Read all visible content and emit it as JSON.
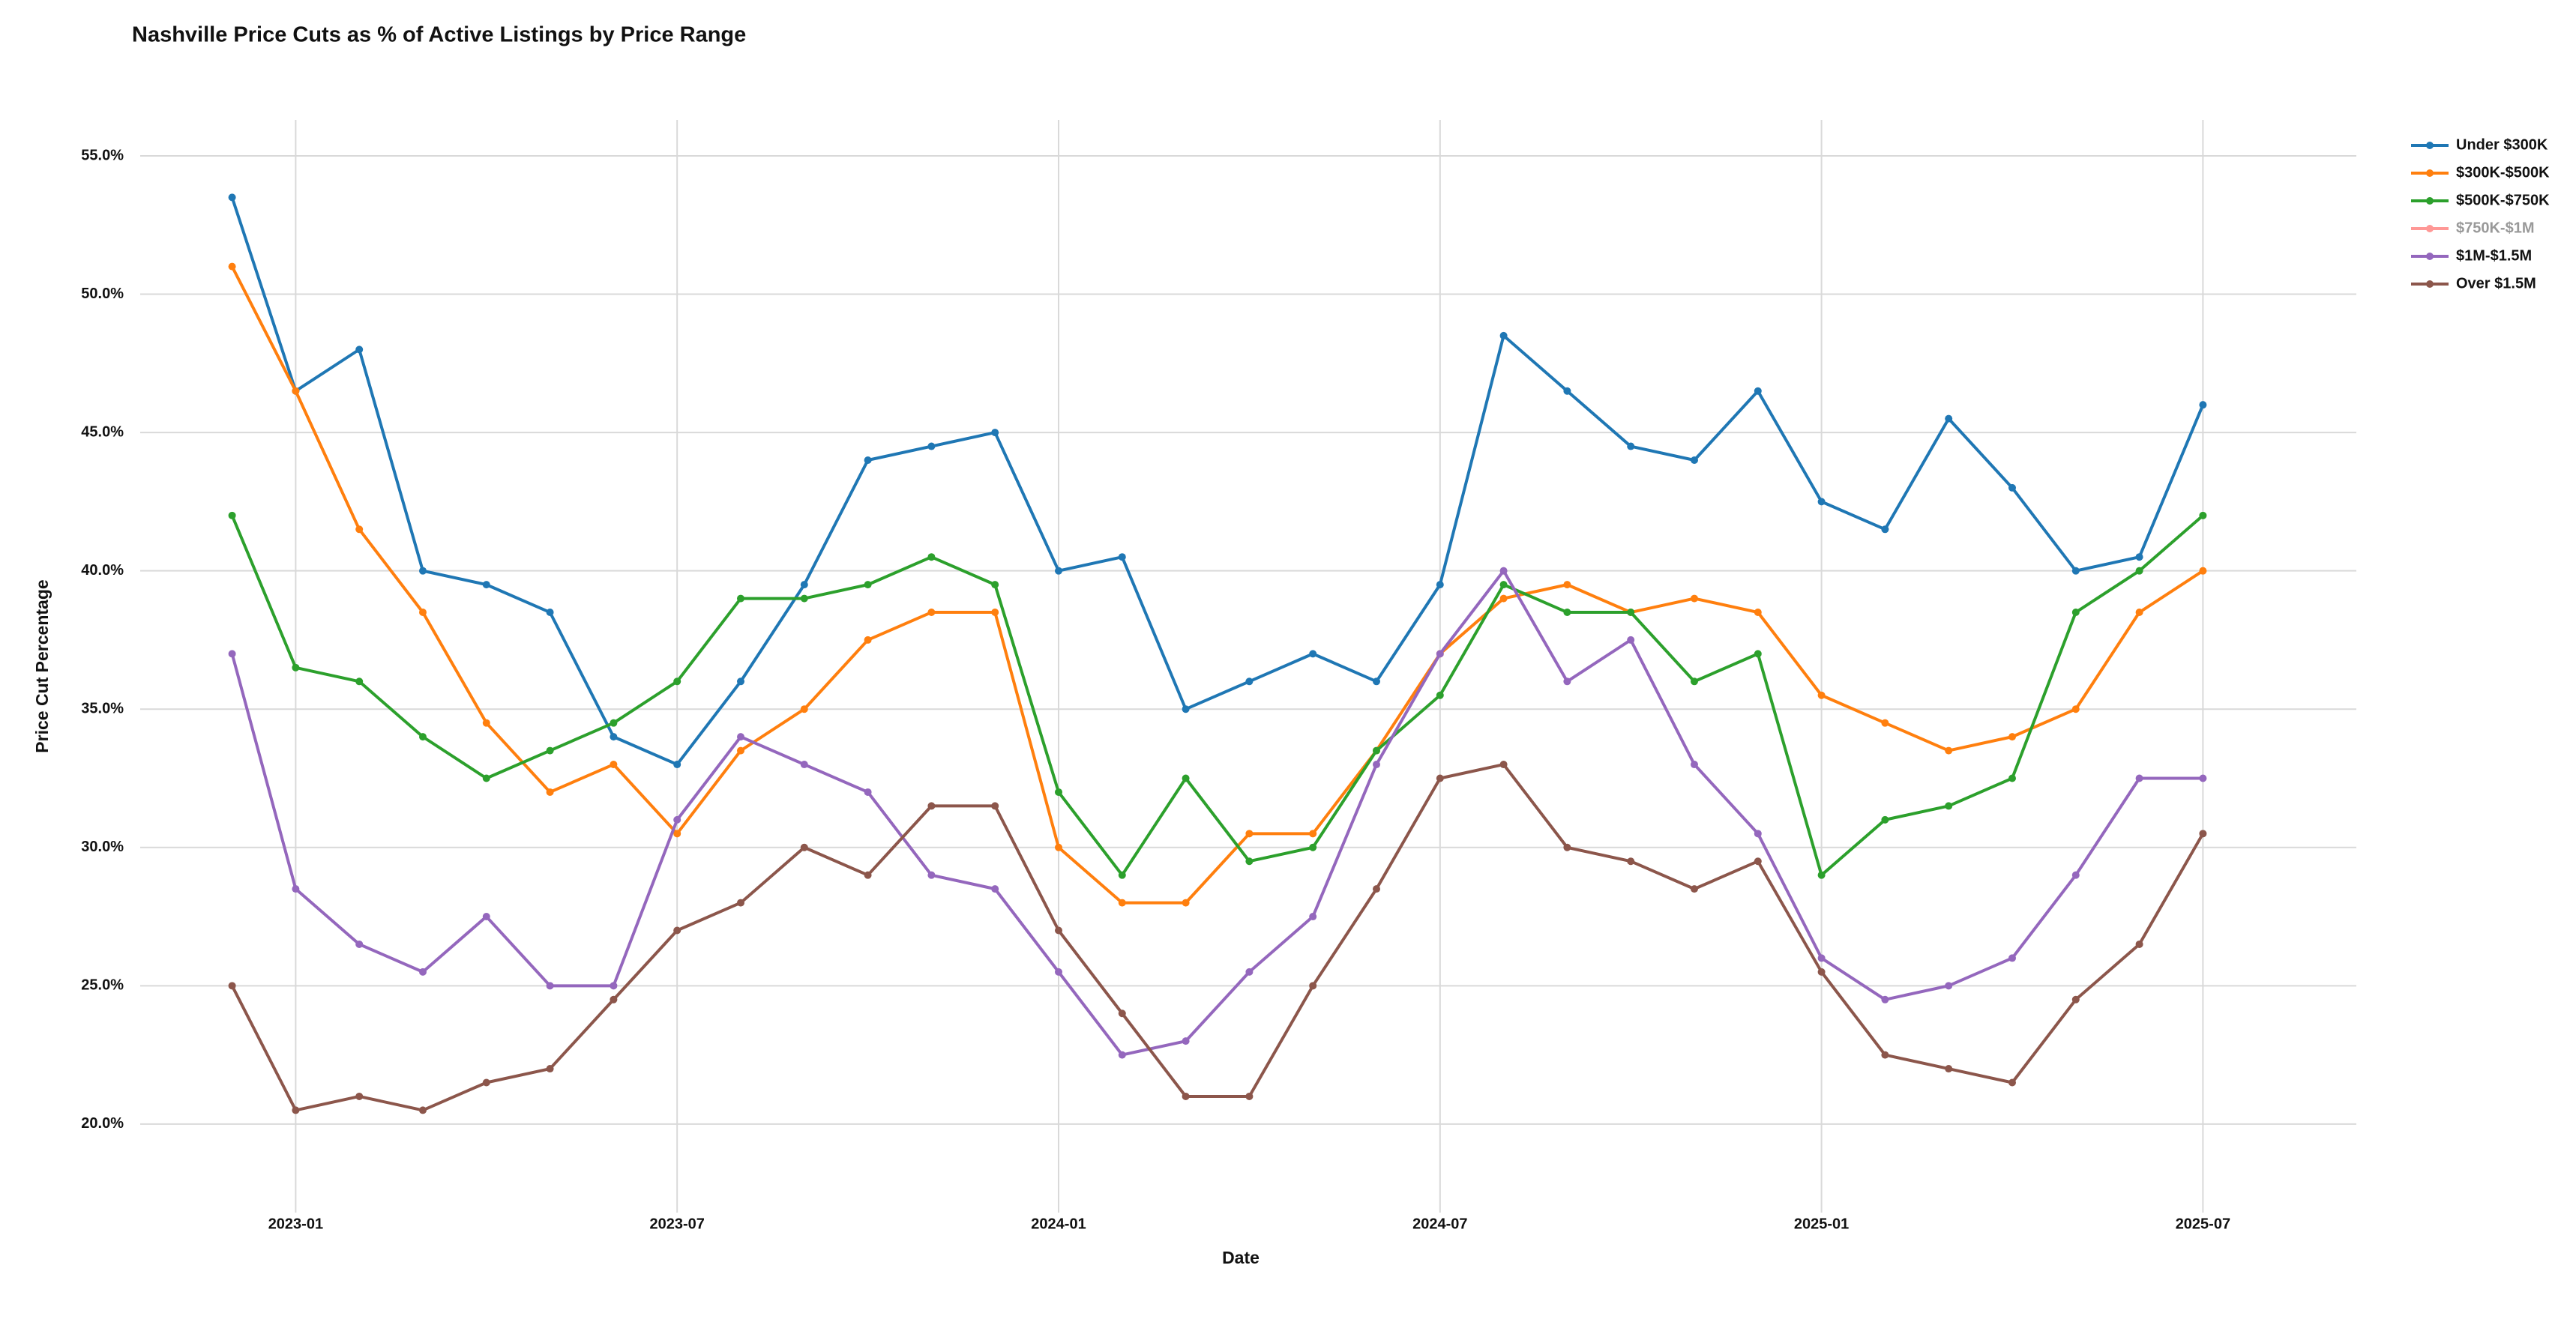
{
  "chart_data": {
    "type": "line",
    "title": "Nashville Price Cuts as % of Active Listings by Price Range",
    "xlabel": "Date",
    "ylabel": "Price Cut Percentage",
    "x": [
      "2022-12",
      "2023-01",
      "2023-02",
      "2023-03",
      "2023-04",
      "2023-05",
      "2023-06",
      "2023-07",
      "2023-08",
      "2023-09",
      "2023-10",
      "2023-11",
      "2023-12",
      "2024-01",
      "2024-02",
      "2024-03",
      "2024-04",
      "2024-05",
      "2024-06",
      "2024-07",
      "2024-08",
      "2024-09",
      "2024-10",
      "2024-11",
      "2024-12",
      "2025-01",
      "2025-02",
      "2025-03",
      "2025-04",
      "2025-05",
      "2025-06",
      "2025-07"
    ],
    "series": [
      {
        "name": "Under $300K",
        "color": "#1f77b4",
        "visible": true,
        "values": [
          53.5,
          46.5,
          48,
          40,
          39.5,
          38.5,
          34,
          33,
          36,
          39.5,
          44,
          44.5,
          45,
          40,
          40.5,
          35,
          36,
          37,
          36,
          39.5,
          48.5,
          46.5,
          44.5,
          44,
          46.5,
          42.5,
          41.5,
          45.5,
          43,
          40,
          40.5,
          46
        ]
      },
      {
        "name": "$300K-$500K",
        "color": "#ff7f0e",
        "visible": true,
        "values": [
          51,
          46.5,
          41.5,
          38.5,
          34.5,
          32,
          33,
          30.5,
          33.5,
          35,
          37.5,
          38.5,
          38.5,
          30,
          28,
          28,
          30.5,
          30.5,
          33.5,
          37,
          39,
          39.5,
          38.5,
          39,
          38.5,
          35.5,
          34.5,
          33.5,
          34,
          35,
          38.5,
          40
        ]
      },
      {
        "name": "$500K-$750K",
        "color": "#2ca02c",
        "visible": true,
        "values": [
          42,
          36.5,
          36,
          34,
          32.5,
          33.5,
          34.5,
          36,
          39,
          39,
          39.5,
          40.5,
          39.5,
          32,
          29,
          32.5,
          29.5,
          30,
          33.5,
          35.5,
          39.5,
          38.5,
          38.5,
          36,
          37,
          29,
          31,
          31.5,
          32.5,
          38.5,
          40,
          42
        ]
      },
      {
        "name": "$750K-$1M",
        "color": "#ff9896",
        "visible": false,
        "values": [
          null,
          null,
          null,
          null,
          null,
          null,
          null,
          null,
          null,
          null,
          null,
          null,
          null,
          null,
          null,
          null,
          null,
          null,
          null,
          null,
          null,
          null,
          null,
          null,
          null,
          null,
          null,
          null,
          null,
          null,
          null,
          null
        ]
      },
      {
        "name": "$1M-$1.5M",
        "color": "#9467bd",
        "visible": true,
        "values": [
          37,
          28.5,
          26.5,
          25.5,
          27.5,
          25,
          25,
          31,
          34,
          33,
          32,
          29,
          28.5,
          25.5,
          22.5,
          23,
          25.5,
          27.5,
          33,
          37,
          40,
          36,
          37.5,
          33,
          30.5,
          26,
          24.5,
          25,
          26,
          29,
          32.5,
          32.5
        ]
      },
      {
        "name": "Over $1.5M",
        "color": "#8c564b",
        "visible": true,
        "values": [
          25,
          20.5,
          21,
          20.5,
          21.5,
          22,
          24.5,
          27,
          28,
          30,
          29,
          31.5,
          31.5,
          27,
          24,
          21,
          21,
          25,
          28.5,
          32.5,
          33,
          30,
          29.5,
          28.5,
          29.5,
          25.5,
          22.5,
          22,
          21.5,
          24.5,
          26.5,
          30.5
        ]
      }
    ],
    "xlim": [
      "2022-10",
      "2025-09"
    ],
    "xticks": [
      "2023-01",
      "2023-07",
      "2024-01",
      "2024-07",
      "2025-01",
      "2025-07"
    ],
    "ylim": [
      16.8,
      56.3
    ],
    "yticks": [
      {
        "value": 20,
        "label": "20.0%"
      },
      {
        "value": 25,
        "label": "25.0%"
      },
      {
        "value": 30,
        "label": "30.0%"
      },
      {
        "value": 35,
        "label": "35.0%"
      },
      {
        "value": 40,
        "label": "40.0%"
      },
      {
        "value": 45,
        "label": "45.0%"
      },
      {
        "value": 50,
        "label": "50.0%"
      },
      {
        "value": 55,
        "label": "55.0%"
      }
    ],
    "grid": true,
    "legend": "upper right"
  }
}
